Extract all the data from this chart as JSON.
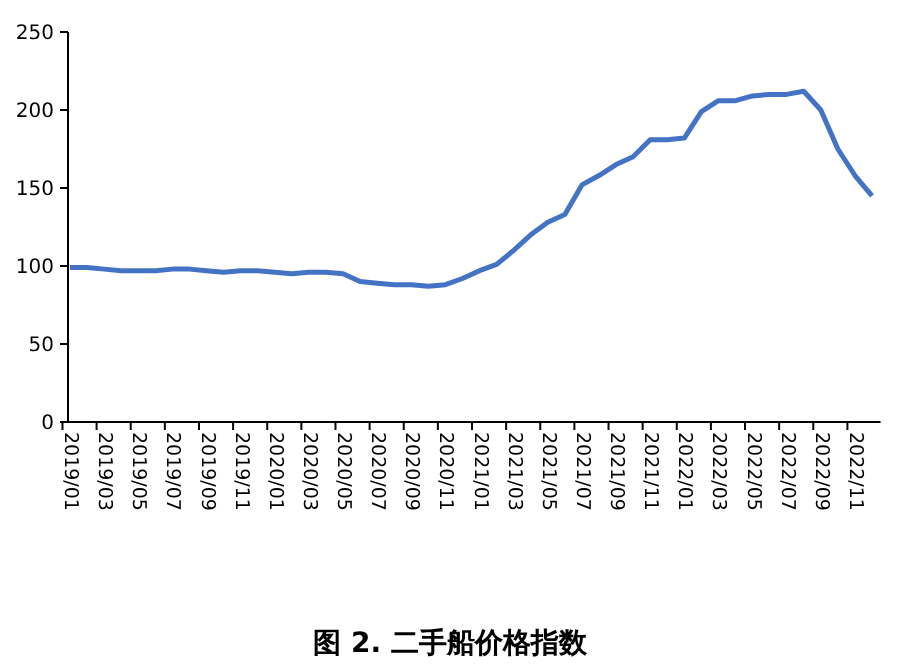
{
  "chart_data": {
    "type": "line",
    "title": "图 2. 二手船价格指数",
    "categories": [
      "2019/01",
      null,
      "2019/03",
      null,
      "2019/05",
      null,
      "2019/07",
      null,
      "2019/09",
      null,
      "2019/11",
      null,
      "2020/01",
      null,
      "2020/03",
      null,
      "2020/05",
      null,
      "2020/07",
      null,
      "2020/09",
      null,
      "2020/11",
      null,
      "2021/01",
      null,
      "2021/03",
      null,
      "2021/05",
      null,
      "2021/07",
      null,
      "2021/09",
      null,
      "2021/11",
      null,
      "2022/01",
      null,
      "2022/03",
      null,
      "2022/05",
      null,
      "2022/07",
      null,
      "2022/09",
      null,
      "2022/11",
      null
    ],
    "series": [
      {
        "color": "#4472c4",
        "values": [
          99,
          99,
          98,
          97,
          97,
          97,
          98,
          98,
          97,
          96,
          97,
          97,
          96,
          95,
          96,
          96,
          95,
          90,
          89,
          88,
          88,
          87,
          88,
          92,
          97,
          101,
          110,
          120,
          128,
          133,
          152,
          158,
          165,
          170,
          181,
          181,
          182,
          199,
          206,
          206,
          209,
          210,
          210,
          212,
          200,
          175,
          158,
          145
        ]
      }
    ],
    "ylim": [
      0,
      250
    ],
    "yticks": [
      0,
      50,
      100,
      150,
      200,
      250
    ],
    "grid": false,
    "line_style": "solid"
  }
}
